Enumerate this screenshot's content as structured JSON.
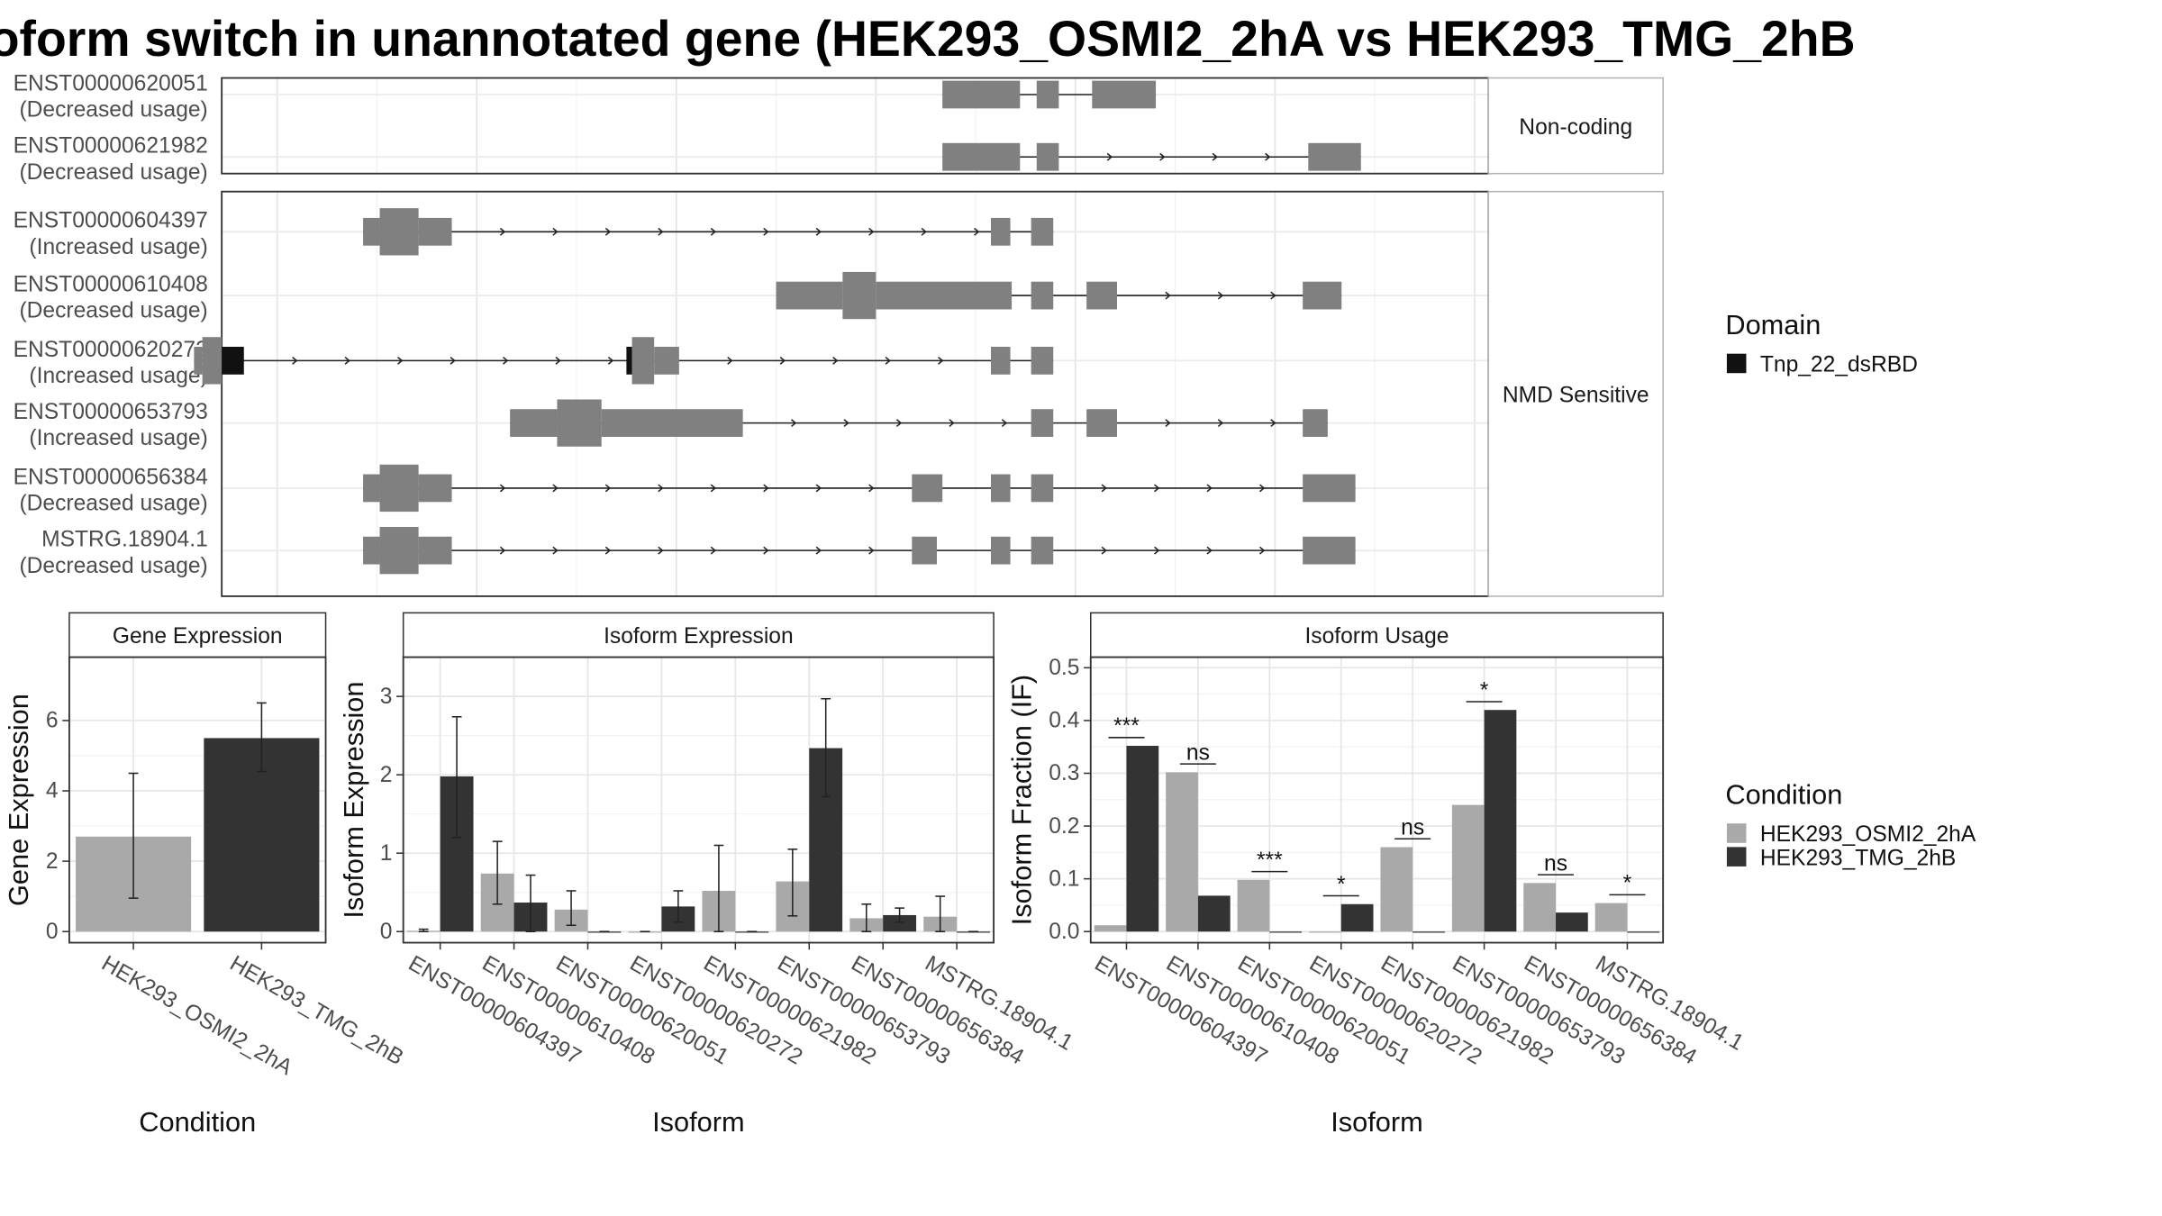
{
  "title": "oform switch in unannotated gene (HEK293_OSMI2_2hA vs HEK293_TMG_2hB",
  "colors": {
    "cond_a": "#a9a9a9",
    "cond_b": "#333333",
    "exon": "#808080",
    "domain": "#111111"
  },
  "structure": {
    "groups": [
      {
        "label": "Non-coding",
        "isoforms": [
          {
            "id": "ENST00000620051",
            "usage": "(Decreased usage)",
            "exons": [
              [
                680,
                736,
                "n"
              ],
              [
                748,
                764,
                "n"
              ],
              [
                788,
                834,
                "n"
              ]
            ],
            "arrows": false
          },
          {
            "id": "ENST00000621982",
            "usage": "(Decreased usage)",
            "exons": [
              [
                680,
                736,
                "n"
              ],
              [
                748,
                764,
                "n"
              ],
              [
                944,
                982,
                "n"
              ]
            ],
            "arrows": true
          }
        ]
      },
      {
        "label": "NMD Sensitive",
        "isoforms": [
          {
            "id": "ENST00000604397",
            "usage": "(Increased usage)",
            "exons": [
              [
                262,
                274,
                "n"
              ],
              [
                274,
                302,
                "t"
              ],
              [
                302,
                326,
                "n"
              ],
              [
                715,
                729,
                "n"
              ],
              [
                744,
                760,
                "n"
              ]
            ],
            "arrows": true
          },
          {
            "id": "ENST00000610408",
            "usage": "(Decreased usage)",
            "exons": [
              [
                560,
                608,
                "n"
              ],
              [
                608,
                632,
                "t"
              ],
              [
                632,
                730,
                "n"
              ],
              [
                744,
                760,
                "n"
              ],
              [
                784,
                806,
                "n"
              ],
              [
                940,
                968,
                "n"
              ]
            ],
            "arrows": true
          },
          {
            "id": "ENST00000620272",
            "usage": "(Increased usage)",
            "exons": [
              [
                140,
                146,
                "n"
              ],
              [
                146,
                160,
                "t"
              ],
              [
                160,
                176,
                "d"
              ],
              [
                452,
                456,
                "d"
              ],
              [
                456,
                472,
                "t"
              ],
              [
                472,
                490,
                "n"
              ],
              [
                715,
                729,
                "n"
              ],
              [
                744,
                760,
                "n"
              ]
            ],
            "arrows": true
          },
          {
            "id": "ENST00000653793",
            "usage": "(Increased usage)",
            "exons": [
              [
                368,
                402,
                "n"
              ],
              [
                402,
                434,
                "t"
              ],
              [
                434,
                536,
                "n"
              ],
              [
                744,
                760,
                "n"
              ],
              [
                784,
                806,
                "n"
              ],
              [
                940,
                958,
                "n"
              ]
            ],
            "arrows": true
          },
          {
            "id": "ENST00000656384",
            "usage": "(Decreased usage)",
            "exons": [
              [
                262,
                274,
                "n"
              ],
              [
                274,
                302,
                "t"
              ],
              [
                302,
                326,
                "n"
              ],
              [
                658,
                680,
                "n"
              ],
              [
                715,
                729,
                "n"
              ],
              [
                744,
                760,
                "n"
              ],
              [
                940,
                978,
                "n"
              ]
            ],
            "arrows": true
          },
          {
            "id": "MSTRG.18904.1",
            "usage": "(Decreased usage)",
            "exons": [
              [
                262,
                274,
                "n"
              ],
              [
                274,
                302,
                "t"
              ],
              [
                302,
                326,
                "n"
              ],
              [
                658,
                676,
                "n"
              ],
              [
                715,
                729,
                "n"
              ],
              [
                744,
                760,
                "n"
              ],
              [
                940,
                978,
                "n"
              ]
            ],
            "arrows": true
          }
        ]
      }
    ]
  },
  "legend_domain": {
    "title": "Domain",
    "items": [
      "Tnp_22_dsRBD"
    ]
  },
  "legend_condition": {
    "title": "Condition",
    "items": [
      "HEK293_OSMI2_2hA",
      "HEK293_TMG_2hB"
    ]
  },
  "chart_data": [
    {
      "type": "bar",
      "panel_title": "Gene Expression",
      "xlabel": "Condition",
      "ylabel": "Gene Expression",
      "ylim": [
        0,
        7.8
      ],
      "yticks": [
        0,
        2,
        4,
        6
      ],
      "categories": [
        "HEK293_OSMI2_2hA",
        "HEK293_TMG_2hB"
      ],
      "values": [
        2.7,
        5.5
      ],
      "error": [
        [
          0.95,
          4.5
        ],
        [
          4.55,
          6.5
        ]
      ]
    },
    {
      "type": "bar",
      "panel_title": "Isoform Expression",
      "xlabel": "Isoform",
      "ylabel": "Isoform Expression",
      "ylim": [
        0,
        3.5
      ],
      "yticks": [
        0,
        1,
        2,
        3
      ],
      "categories": [
        "ENST00000604397",
        "ENST00000610408",
        "ENST00000620051",
        "ENST00000620272",
        "ENST00000621982",
        "ENST00000653793",
        "ENST00000656384",
        "MSTRG.18904.1"
      ],
      "series": [
        {
          "name": "HEK293_OSMI2_2hA",
          "values": [
            0.01,
            0.74,
            0.28,
            0.0,
            0.52,
            0.64,
            0.17,
            0.19
          ],
          "error": [
            [
              0.0,
              0.03
            ],
            [
              0.35,
              1.15
            ],
            [
              0.08,
              0.52
            ],
            [
              0.0,
              0.0
            ],
            [
              0.0,
              1.1
            ],
            [
              0.2,
              1.05
            ],
            [
              0.0,
              0.35
            ],
            [
              0.0,
              0.45
            ]
          ]
        },
        {
          "name": "HEK293_TMG_2hB",
          "values": [
            1.98,
            0.37,
            0.0,
            0.32,
            0.0,
            2.34,
            0.21,
            0.0
          ],
          "error": [
            [
              1.2,
              2.74
            ],
            [
              0.0,
              0.72
            ],
            [
              0.0,
              0.0
            ],
            [
              0.12,
              0.52
            ],
            [
              0.0,
              0.0
            ],
            [
              1.72,
              2.97
            ],
            [
              0.12,
              0.3
            ],
            [
              0.0,
              0.0
            ]
          ]
        }
      ]
    },
    {
      "type": "bar",
      "panel_title": "Isoform Usage",
      "xlabel": "Isoform",
      "ylabel": "Isoform Fraction (IF)",
      "ylim": [
        0,
        0.52
      ],
      "yticks": [
        0.0,
        0.1,
        0.2,
        0.3,
        0.4,
        0.5
      ],
      "categories": [
        "ENST00000604397",
        "ENST00000610408",
        "ENST00000620051",
        "ENST00000620272",
        "ENST00000621982",
        "ENST00000653793",
        "ENST00000656384",
        "MSTRG.18904.1"
      ],
      "series": [
        {
          "name": "HEK293_OSMI2_2hA",
          "values": [
            0.012,
            0.302,
            0.098,
            0.0,
            0.16,
            0.24,
            0.092,
            0.054
          ]
        },
        {
          "name": "HEK293_TMG_2hB",
          "values": [
            0.352,
            0.068,
            0.0,
            0.052,
            0.0,
            0.42,
            0.036,
            0.0
          ]
        }
      ],
      "annotations": [
        {
          "category": "ENST00000604397",
          "label": "***"
        },
        {
          "category": "ENST00000610408",
          "label": "ns"
        },
        {
          "category": "ENST00000620051",
          "label": "***"
        },
        {
          "category": "ENST00000620272",
          "label": "*"
        },
        {
          "category": "ENST00000621982",
          "label": "ns"
        },
        {
          "category": "ENST00000653793",
          "label": "*"
        },
        {
          "category": "ENST00000656384",
          "label": "ns"
        },
        {
          "category": "MSTRG.18904.1",
          "label": "*"
        }
      ]
    }
  ]
}
